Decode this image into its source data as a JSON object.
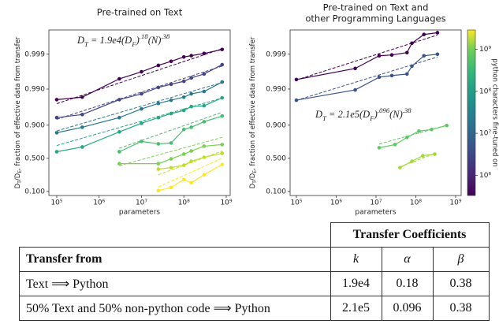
{
  "chart_data": [
    {
      "type": "line",
      "title": [
        "Pre-trained on Text"
      ],
      "xlabel": "parameters",
      "ylabel": [
        {
          "text": "D"
        },
        {
          "text": "T",
          "pos": "sub"
        },
        {
          "text": "/D"
        },
        {
          "text": "E",
          "pos": "sub"
        },
        {
          "text": ", fraction of effective data from transfer"
        }
      ],
      "annotation": [
        {
          "text": "D"
        },
        {
          "text": "T",
          "pos": "sub"
        },
        {
          "text": " = 1.9e4(D"
        },
        {
          "text": "F",
          "pos": "sub"
        },
        {
          "text": ")"
        },
        {
          "text": ".18",
          "pos": "sup"
        },
        {
          "text": "(N)"
        },
        {
          "text": ".38",
          "pos": "sup"
        }
      ],
      "xscale": "log",
      "yscale": "logit",
      "xlim": [
        65200,
        1240000000
      ],
      "ylim": [
        0.078,
        0.9998
      ],
      "xticks": [
        {
          "value": 100000,
          "label": "10⁵"
        },
        {
          "value": 1000000,
          "label": "10⁶"
        },
        {
          "value": 10000000,
          "label": "10⁷"
        },
        {
          "value": 100000000,
          "label": "10⁸"
        },
        {
          "value": 1000000000,
          "label": "10⁹"
        }
      ],
      "yticks": [
        {
          "value": 0.1,
          "label": "0.100"
        },
        {
          "value": 0.5,
          "label": "0.500"
        },
        {
          "value": 0.9,
          "label": "0.900"
        },
        {
          "value": 0.99,
          "label": "0.990"
        },
        0.999
      ],
      "grid": false,
      "series": [
        {
          "color": "#440154",
          "x": [
            100000,
            400000,
            3000000,
            10000000,
            25000000,
            50000000,
            100000000,
            150000000,
            300000000,
            800000000
          ],
          "values": [
            0.98,
            0.983,
            0.9949,
            0.9968,
            0.9979,
            0.9984,
            0.9988,
            0.9989,
            0.99905,
            0.99927
          ],
          "fit": {
            "x": [
              100000,
              800000000
            ],
            "values": [
              0.974,
              0.9993
            ]
          }
        },
        {
          "color": "#414487",
          "x": [
            100000,
            400000,
            3000000,
            10000000,
            25000000,
            50000000,
            100000000,
            150000000,
            300000000,
            800000000
          ],
          "values": [
            0.937,
            0.948,
            0.98,
            0.9863,
            0.991,
            0.9927,
            0.994,
            0.9952,
            0.9963,
            0.998
          ],
          "fit": {
            "x": [
              100000,
              800000000
            ],
            "values": [
              0.93,
              0.9978
            ]
          }
        },
        {
          "color": "#2a788e",
          "x": [
            100000,
            400000,
            3000000,
            10000000,
            25000000,
            50000000,
            100000000,
            150000000,
            300000000,
            800000000
          ],
          "values": [
            0.845,
            0.887,
            0.937,
            0.9636,
            0.9745,
            0.9793,
            0.983,
            0.9863,
            0.9883,
            0.9937
          ],
          "fit": {
            "x": [
              100000,
              800000000
            ],
            "values": [
              0.86,
              0.9935
            ]
          }
        },
        {
          "color": "#22a884",
          "x": [
            100000,
            400000,
            3000000,
            10000000,
            25000000,
            50000000,
            100000000,
            150000000,
            300000000,
            800000000
          ],
          "values": [
            0.607,
            0.679,
            0.852,
            0.911,
            0.937,
            0.951,
            0.96,
            0.9687,
            0.9703,
            0.9822
          ],
          "fit": {
            "x": [
              100000,
              800000000
            ],
            "values": [
              0.7,
              0.982
            ]
          }
        },
        {
          "color": "#44bf70",
          "x": [
            3000000,
            10000000,
            25000000,
            50000000,
            100000000,
            150000000,
            300000000,
            800000000
          ],
          "values": [
            0.607,
            0.754,
            0.723,
            0.734,
            0.871,
            0.887,
            0.919,
            0.943
          ],
          "fit": {
            "x": [
              3000000,
              800000000
            ],
            "values": [
              0.66,
              0.955
            ]
          }
        },
        {
          "color": "#7ad151",
          "x": [
            3000000,
            25000000,
            50000000,
            100000000,
            150000000,
            300000000,
            800000000
          ],
          "values": [
            0.412,
            0.412,
            0.49,
            0.569,
            0.619,
            0.691,
            0.713
          ],
          "fit": {
            "x": [
              3000000,
              800000000
            ],
            "values": [
              0.38,
              0.8
            ]
          }
        },
        {
          "color": "#bddf26",
          "x": [
            25000000,
            50000000,
            100000000,
            150000000,
            300000000,
            800000000
          ],
          "values": [
            0.327,
            0.35,
            0.387,
            0.451,
            0.517,
            0.582
          ],
          "fit": {
            "x": [
              25000000,
              800000000
            ],
            "values": [
              0.25,
              0.62
            ]
          }
        },
        {
          "color": "#fde725",
          "x": [
            25000000,
            50000000,
            100000000,
            150000000,
            300000000,
            800000000
          ],
          "values": [
            0.105,
            0.126,
            0.197,
            0.165,
            0.251,
            0.399
          ],
          "fit": {
            "x": [
              25000000,
              800000000
            ],
            "values": [
              0.13,
              0.5
            ]
          }
        }
      ]
    },
    {
      "type": "line",
      "title": [
        "Pre-trained on Text and",
        "other Programming Languages"
      ],
      "xlabel": "parameters",
      "ylabel": [
        {
          "text": "D"
        },
        {
          "text": "T",
          "pos": "sub"
        },
        {
          "text": "/D"
        },
        {
          "text": "E",
          "pos": "sub"
        },
        {
          "text": ", fraction of effective data from transfer"
        }
      ],
      "annotation": [
        {
          "text": "D"
        },
        {
          "text": "T",
          "pos": "sub"
        },
        {
          "text": " = 2.1e5(D"
        },
        {
          "text": "F",
          "pos": "sub"
        },
        {
          "text": ")"
        },
        {
          "text": ".096",
          "pos": "sup"
        },
        {
          "text": "(N)"
        },
        {
          "text": ".38",
          "pos": "sup"
        }
      ],
      "xscale": "log",
      "yscale": "logit",
      "xlim": [
        69500,
        1380000000
      ],
      "ylim": [
        0.078,
        0.9998
      ],
      "xticks": [
        {
          "value": 100000,
          "label": "10⁵"
        },
        {
          "value": 1000000,
          "label": "10⁶"
        },
        {
          "value": 10000000,
          "label": "10⁷"
        },
        {
          "value": 100000000,
          "label": "10⁸"
        },
        {
          "value": 1000000000,
          "label": "10⁹"
        }
      ],
      "yticks": [
        {
          "value": 0.1,
          "label": "0.100"
        },
        {
          "value": 0.5,
          "label": "0.500"
        },
        {
          "value": 0.9,
          "label": "0.900"
        },
        {
          "value": 0.99,
          "label": "0.990"
        },
        0.999
      ],
      "grid": false,
      "series": [
        {
          "color": "#440154",
          "x": [
            100000,
            3000000,
            12000000,
            25000000,
            60000000,
            80000000,
            160000000,
            350000000
          ],
          "values": [
            0.99465,
            0.99743,
            0.99889,
            0.99895,
            0.9991,
            0.99952,
            0.99973,
            0.99976
          ],
          "fit": {
            "x": [
              100000,
              350000000
            ],
            "values": [
              0.9945,
              0.99972
            ]
          }
        },
        {
          "color": "#3b528b",
          "x": [
            100000,
            3000000,
            12000000,
            25000000,
            60000000,
            80000000,
            160000000,
            350000000
          ],
          "values": [
            0.9793,
            0.9894,
            0.99542,
            0.99588,
            0.99629,
            0.9978,
            0.99889,
            0.999
          ],
          "fit": {
            "x": [
              100000,
              350000000
            ],
            "values": [
              0.979,
              0.9988
            ]
          }
        },
        {
          "color": "#5ec962",
          "x": [
            12000000,
            30000000,
            60000000,
            120000000,
            250000000,
            600000000
          ],
          "values": [
            0.668,
            0.713,
            0.799,
            0.859,
            0.871,
            0.898
          ],
          "fit": {
            "x": [
              12000000,
              600000000
            ],
            "values": [
              0.72,
              0.9
            ]
          }
        },
        {
          "color": "#a0da39",
          "x": [
            40000000,
            80000000,
            150000000,
            300000000
          ],
          "values": [
            0.35,
            0.451,
            0.542,
            0.569
          ],
          "fit": {
            "x": [
              40000000,
              300000000
            ],
            "values": [
              0.36,
              0.58
            ]
          }
        }
      ],
      "colorbar": {
        "scale": "log",
        "ylim": [
          330000,
          2900000000
        ],
        "label": "python characters fine-tuned on",
        "yticks": [
          {
            "value": 1000000,
            "label": "10⁶"
          },
          {
            "value": 10000000,
            "label": "10⁷"
          },
          {
            "value": 100000000,
            "label": "10⁸"
          },
          {
            "value": 1000000000,
            "label": "10⁹"
          }
        ]
      }
    }
  ],
  "table": {
    "group_header": "Transfer Coefficients",
    "columns": [
      "Transfer from",
      "k",
      "α",
      "β"
    ],
    "rows": [
      [
        "Text ⟹ Python",
        "1.9e4",
        0.18,
        0.38
      ],
      [
        "50% Text and 50% non-python code ⟹ Python",
        "2.1e5",
        0.096,
        0.38
      ]
    ]
  }
}
